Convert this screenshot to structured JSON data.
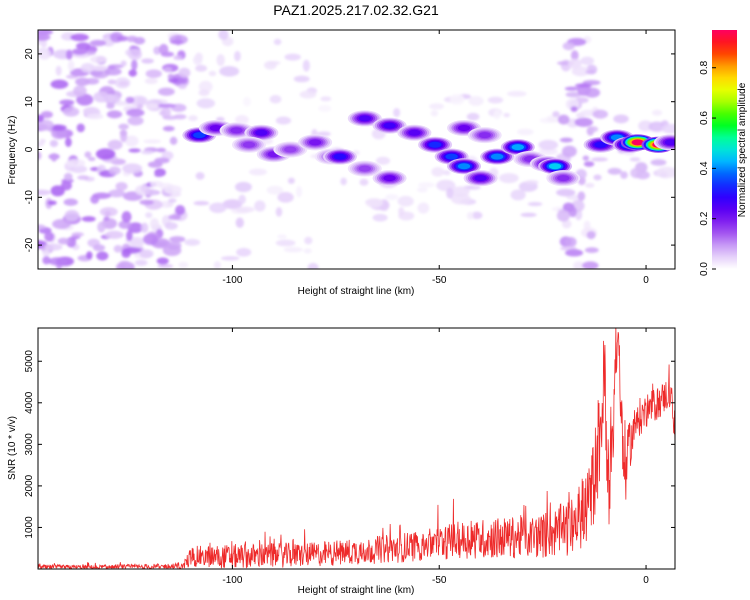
{
  "figure": {
    "title": "PAZ1.2025.217.02.32.G21"
  },
  "chart_data": [
    {
      "type": "heatmap",
      "xlabel": "Height of straight line (km)",
      "ylabel": "Frequency (Hz)",
      "xlim": [
        -147,
        7
      ],
      "ylim": [
        -25,
        25
      ],
      "x_ticks": [
        -100,
        -50,
        0
      ],
      "y_ticks": [
        -20,
        -10,
        0,
        10,
        20
      ],
      "colorbar": {
        "label": "Normalized spectral amplitude",
        "range": [
          0,
          0.95
        ],
        "ticks": [
          0.0,
          0.2,
          0.4,
          0.6,
          0.8
        ],
        "colormap": [
          "#ffffff",
          "#d8b8f8",
          "#a050f0",
          "#6a00f0",
          "#2a00ff",
          "#0050ff",
          "#00c8ff",
          "#00ffb0",
          "#00ff00",
          "#a0ff00",
          "#ffff00",
          "#ffa000",
          "#ff2000",
          "#ff0060"
        ]
      },
      "blobs": [
        {
          "x": -108,
          "y": 3,
          "value": 0.35
        },
        {
          "x": -104,
          "y": 4.5,
          "value": 0.22
        },
        {
          "x": -99,
          "y": 4,
          "value": 0.18
        },
        {
          "x": -93,
          "y": 3.5,
          "value": 0.25
        },
        {
          "x": -96,
          "y": 1,
          "value": 0.17
        },
        {
          "x": -90,
          "y": -1,
          "value": 0.2
        },
        {
          "x": -86,
          "y": 0,
          "value": 0.16
        },
        {
          "x": -80,
          "y": 1.5,
          "value": 0.2
        },
        {
          "x": -76,
          "y": -1.5,
          "value": 0.15
        },
        {
          "x": -74,
          "y": -1.5,
          "value": 0.3
        },
        {
          "x": -68,
          "y": -4,
          "value": 0.16
        },
        {
          "x": -62,
          "y": -6,
          "value": 0.22
        },
        {
          "x": -68,
          "y": 6.5,
          "value": 0.25
        },
        {
          "x": -62,
          "y": 5,
          "value": 0.27
        },
        {
          "x": -56,
          "y": 3.5,
          "value": 0.24
        },
        {
          "x": -51,
          "y": 1,
          "value": 0.33
        },
        {
          "x": -47,
          "y": -1.5,
          "value": 0.35
        },
        {
          "x": -44,
          "y": -3.5,
          "value": 0.4
        },
        {
          "x": -40,
          "y": -6,
          "value": 0.25
        },
        {
          "x": -44,
          "y": 4.5,
          "value": 0.22
        },
        {
          "x": -39,
          "y": 3,
          "value": 0.18
        },
        {
          "x": -36,
          "y": -1.5,
          "value": 0.4
        },
        {
          "x": -31,
          "y": 0.5,
          "value": 0.42
        },
        {
          "x": -28,
          "y": -2,
          "value": 0.18
        },
        {
          "x": -24,
          "y": -3,
          "value": 0.25
        },
        {
          "x": -22,
          "y": -3.5,
          "value": 0.45
        },
        {
          "x": -20,
          "y": -6,
          "value": 0.18
        },
        {
          "x": -11,
          "y": 1,
          "value": 0.3
        },
        {
          "x": -7,
          "y": 2.5,
          "value": 0.4
        },
        {
          "x": -4,
          "y": 1,
          "value": 0.45
        },
        {
          "x": -2,
          "y": 1.5,
          "value": 0.95
        },
        {
          "x": 3,
          "y": 1,
          "value": 0.95
        },
        {
          "x": 6,
          "y": 1.5,
          "value": 0.25
        }
      ]
    },
    {
      "type": "line",
      "xlabel": "Height of straight line (km)",
      "ylabel": "SNR (10 * v/v)",
      "xlim": [
        -147,
        7
      ],
      "ylim": [
        0,
        5800
      ],
      "x_ticks": [
        -100,
        -50,
        0
      ],
      "y_ticks": [
        1000,
        2000,
        3000,
        4000,
        5000
      ],
      "color": "#ee2a2a",
      "envelope": {
        "x": [
          -147,
          -130,
          -112,
          -110,
          -100,
          -80,
          -60,
          -45,
          -35,
          -25,
          -18,
          -14,
          -12,
          -10,
          -9,
          -8,
          -7,
          -6,
          -5,
          -4,
          -2,
          0,
          3,
          6,
          7
        ],
        "y": [
          40,
          40,
          60,
          300,
          300,
          350,
          500,
          700,
          750,
          800,
          1000,
          1500,
          2500,
          4500,
          2200,
          3500,
          5800,
          3500,
          2200,
          3000,
          3600,
          3800,
          4000,
          4300,
          3000
        ],
        "noise": [
          60,
          60,
          80,
          250,
          300,
          300,
          350,
          450,
          500,
          550,
          700,
          900,
          1200,
          1400,
          1200,
          1200,
          1000,
          1000,
          900,
          600,
          500,
          400,
          400,
          400,
          400
        ]
      }
    }
  ]
}
